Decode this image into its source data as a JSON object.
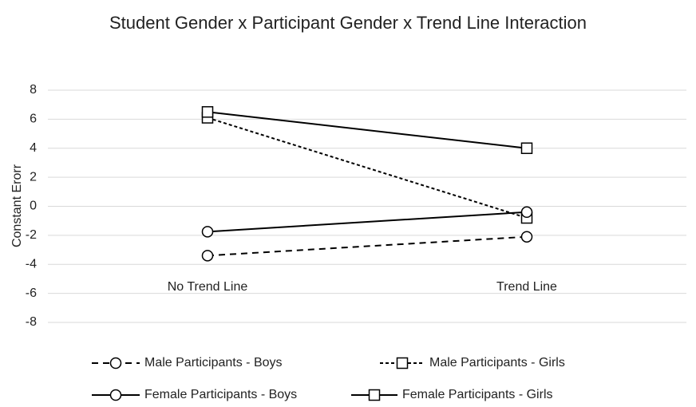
{
  "chart_data": {
    "type": "line",
    "title": "Student Gender x Participant Gender x Trend Line Interaction",
    "y_label": "Constant Erorr",
    "categories": [
      "No Trend Line",
      "Trend Line"
    ],
    "ylim": [
      -8,
      8
    ],
    "yticks": [
      -8,
      -6,
      -4,
      -2,
      0,
      2,
      4,
      6,
      8
    ],
    "grid": true,
    "series": [
      {
        "name": "Male Participants - Boys",
        "color": "#000000",
        "dash": "dashed",
        "marker": "circle",
        "values": [
          -3.4,
          -2.1
        ]
      },
      {
        "name": "Male Participants - Girls",
        "color": "#000000",
        "dash": "dotted",
        "marker": "square",
        "values": [
          6.1,
          -0.8
        ]
      },
      {
        "name": "Female Participants - Boys",
        "color": "#000000",
        "dash": "solid",
        "marker": "circle",
        "values": [
          -1.75,
          -0.4
        ]
      },
      {
        "name": "Female Participants - Girls",
        "color": "#000000",
        "dash": "solid",
        "marker": "square",
        "values": [
          6.5,
          4.0
        ]
      }
    ]
  }
}
